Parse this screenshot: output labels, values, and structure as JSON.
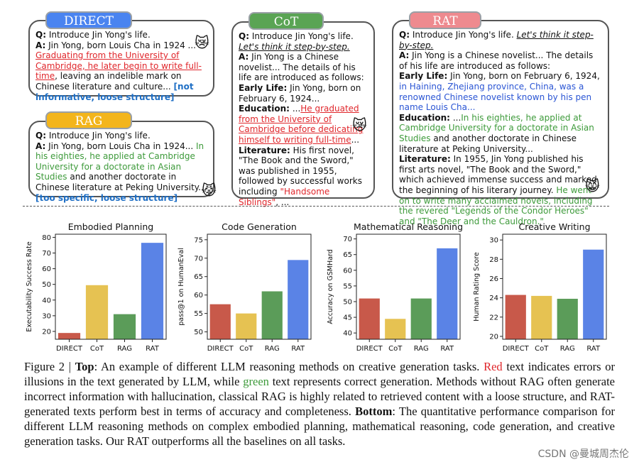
{
  "direct": {
    "tag": "DIRECT",
    "tag_color": "#4a84f0",
    "q_label": "Q:",
    "q": "Introduce Jin Yong's life.",
    "a_label": "A:",
    "a1": "Jin Yong, born Louis Cha in 1924 ...",
    "a_red": "Graduating from the University of Cambridge, he later begin to write full-time",
    "a2": ", leaving an indelible mark on Chinese literature and culture...",
    "note": "[not informative, loose structure]",
    "emoji": "😿"
  },
  "rag": {
    "tag": "RAG",
    "tag_color": "#f3b51c",
    "q_label": "Q:",
    "q": "Introduce Jin Yong's life.",
    "a_label": "A:",
    "a1": "Jin Yong, born Louis Cha in 1924...",
    "a_green": "In his eighties, he applied at Cambridge University for a doctorate in Asian Studies",
    "a2": "and another doctorate in Chinese literature at Peking University...",
    "note": "[too specific, loose structure]",
    "emoji": "😾"
  },
  "cot": {
    "tag": "CoT",
    "tag_color": "#5aa454",
    "q_label": "Q:",
    "q": "Introduce Jin Yong's life.",
    "q_italic": "Let's think it step-by-step.",
    "a_label": "A:",
    "a1": "Jin Yong is a Chinese novelist... The details of his life are introduced as follows:",
    "early_label": "Early Life:",
    "early": "Jin Yong, born on February 6, 1924...",
    "edu_label": "Education:",
    "edu1": "...",
    "edu_red": "He graduated from the University of Cambridge before dedicating himself to writing full-time",
    "edu2": "...",
    "lit_label": "Literature:",
    "lit1": "His first novel, \"The Book and the Sword,\" was published in 1955, followed by successful works including",
    "lit_red": "\"Handsome Siblings\"",
    "lit2": ", ...",
    "emoji": "😿"
  },
  "rat": {
    "tag": "RAT",
    "tag_color": "#ee8a8f",
    "q_label": "Q:",
    "q": "Introduce Jin Yong's life.",
    "q_italic": "Let's think it step-by-step.",
    "a_label": "A:",
    "a1": "Jin Yong is a Chinese novelist... The details of his life are introduced as follows:",
    "early_label": "Early Life:",
    "early1": "Jin Yong, born on February 6, 1924,",
    "early_blue": "in Haining, Zhejiang province, China, was a renowned Chinese novelist known by his pen name Louis Cha...",
    "edu_label": "Education:",
    "edu1": "...",
    "edu_green": "In his eighties, he applied at Cambridge University for a doctorate in Asian Studies",
    "edu2": "and another doctorate in Chinese literature at Peking University...",
    "lit_label": "Literature:",
    "lit1": "In 1955, Jin Yong published his first arts novel, \"The Book and the Sword,\" which achieved immense success and marked the beginning of his literary journey.",
    "lit_green": "He went on to write many acclaimed novels, including the revered \"Legends of the Condor Heroes\" and \"The Deer and the Cauldron.\"",
    "emoji": "😸"
  },
  "colors": {
    "direct": "#c8594a",
    "cot": "#e6c252",
    "rag": "#5b9c59",
    "rat": "#5a83e6"
  },
  "chart_data": [
    {
      "type": "bar",
      "title": "Embodied Planning",
      "categories": [
        "DIRECT",
        "CoT",
        "RAG",
        "RAT"
      ],
      "values": [
        19,
        49.5,
        31,
        76.5
      ],
      "ylabel": "Executability Success Rate",
      "xlabel": "",
      "ylim": [
        15,
        82
      ],
      "yticks": [
        20,
        30,
        40,
        50,
        60,
        70,
        80
      ]
    },
    {
      "type": "bar",
      "title": "Code Generation",
      "categories": [
        "DIRECT",
        "CoT",
        "RAG",
        "RAT"
      ],
      "values": [
        57.5,
        55,
        61,
        69.5
      ],
      "ylabel": "pass@1 on HumanEval",
      "xlabel": "",
      "ylim": [
        48,
        76.5
      ],
      "yticks": [
        50,
        55,
        60,
        65,
        70,
        75
      ]
    },
    {
      "type": "bar",
      "title": "Mathematical Reasoning",
      "categories": [
        "DIRECT",
        "CoT",
        "RAG",
        "RAT"
      ],
      "values": [
        51,
        44.5,
        51,
        67
      ],
      "ylabel": "Accuracy on GSMHard",
      "xlabel": "",
      "ylim": [
        38,
        71.5
      ],
      "yticks": [
        40,
        45,
        50,
        55,
        60,
        65,
        70
      ]
    },
    {
      "type": "bar",
      "title": "Creative Writing",
      "categories": [
        "DIRECT",
        "CoT",
        "RAG",
        "RAT"
      ],
      "values": [
        24.3,
        24.2,
        23.9,
        29
      ],
      "ylabel": "Human Rating Score",
      "xlabel": "",
      "ylim": [
        19.7,
        30.6
      ],
      "yticks": [
        20,
        22,
        24,
        26,
        28,
        30
      ]
    }
  ],
  "caption": {
    "fig_label": "Figure 2 |",
    "top_label": "Top",
    "p1": ": An example of different LLM reasoning methods on creative generation tasks.",
    "red_word": "Red",
    "p2": "text indicates errors or illusions in the text generated by LLM, while",
    "green_word": "green",
    "p3": "text represents correct generation. Methods without RAG often generate incorrect information with hallucination, classical RAG is highly related to retrieved content with a loose structure, and RAT-generated texts perform best in terms of accuracy and completeness.",
    "bottom_label": "Bottom",
    "p4": ": The quantitative performance comparison for different LLM reasoning methods on complex embodied planning, mathematical reasoning, code generation, and creative generation tasks. Our RAT outperforms all the baselines on all tasks."
  },
  "watermark": "CSDN @曼城周杰伦"
}
